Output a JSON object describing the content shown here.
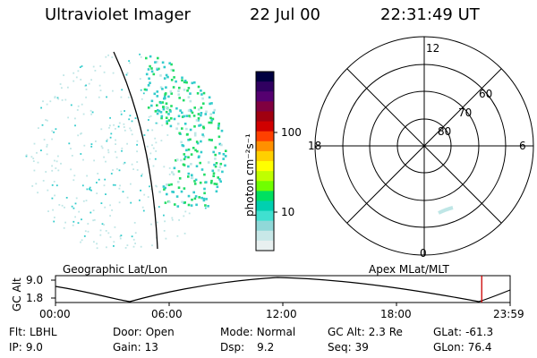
{
  "header": {
    "instrument": "Ultraviolet Imager",
    "date": "22 Jul 00",
    "time": "22:31:49 UT"
  },
  "colorbar": {
    "label": "photon cm⁻²s⁻¹",
    "ticks": [
      "100",
      "10"
    ],
    "colors": [
      "#000040",
      "#300060",
      "#550070",
      "#800040",
      "#a00010",
      "#d00000",
      "#ff4000",
      "#ff9000",
      "#ffd000",
      "#ffff00",
      "#c0ff00",
      "#70ff00",
      "#00e060",
      "#00d0b0",
      "#40e0d0",
      "#90d8d8",
      "#c8e8e8",
      "#e8f0f0"
    ]
  },
  "polar": {
    "lat_labels": [
      "60",
      "70",
      "80"
    ],
    "mlt_labels": {
      "top": "12",
      "left": "18",
      "right": "6",
      "bottom": "0"
    }
  },
  "map_labels": {
    "geographic": "Geographic Lat/Lon",
    "apex": "Apex MLat/MLT"
  },
  "altitude_plot": {
    "ylabel": "GC Alt",
    "yticks": [
      "9.0",
      "1.8"
    ],
    "xticks": [
      "00:00",
      "06:00",
      "12:00",
      "18:00",
      "23:59"
    ],
    "current_time_fraction": 0.9375
  },
  "info": {
    "flt": {
      "label": "Flt:",
      "value": "LBHL"
    },
    "ip": {
      "label": "IP:",
      "value": "9.0"
    },
    "door": {
      "label": "Door:",
      "value": "Open"
    },
    "gain": {
      "label": "Gain:",
      "value": "13"
    },
    "mode": {
      "label": "Mode:",
      "value": "Normal"
    },
    "dsp": {
      "label": "Dsp:",
      "value": "9.2"
    },
    "gcalt": {
      "label": "GC Alt:",
      "value": "2.3 Re"
    },
    "seq": {
      "label": "Seq:",
      "value": "39"
    },
    "glat": {
      "label": "GLat:",
      "value": "-61.3"
    },
    "glon": {
      "label": "GLon:",
      "value": "76.4"
    }
  },
  "colors": {
    "aurora_green": "#22dd66",
    "aurora_cyan": "#33cccc",
    "aurora_pale": "#bfe6e6",
    "marker_red": "#cc0000"
  }
}
